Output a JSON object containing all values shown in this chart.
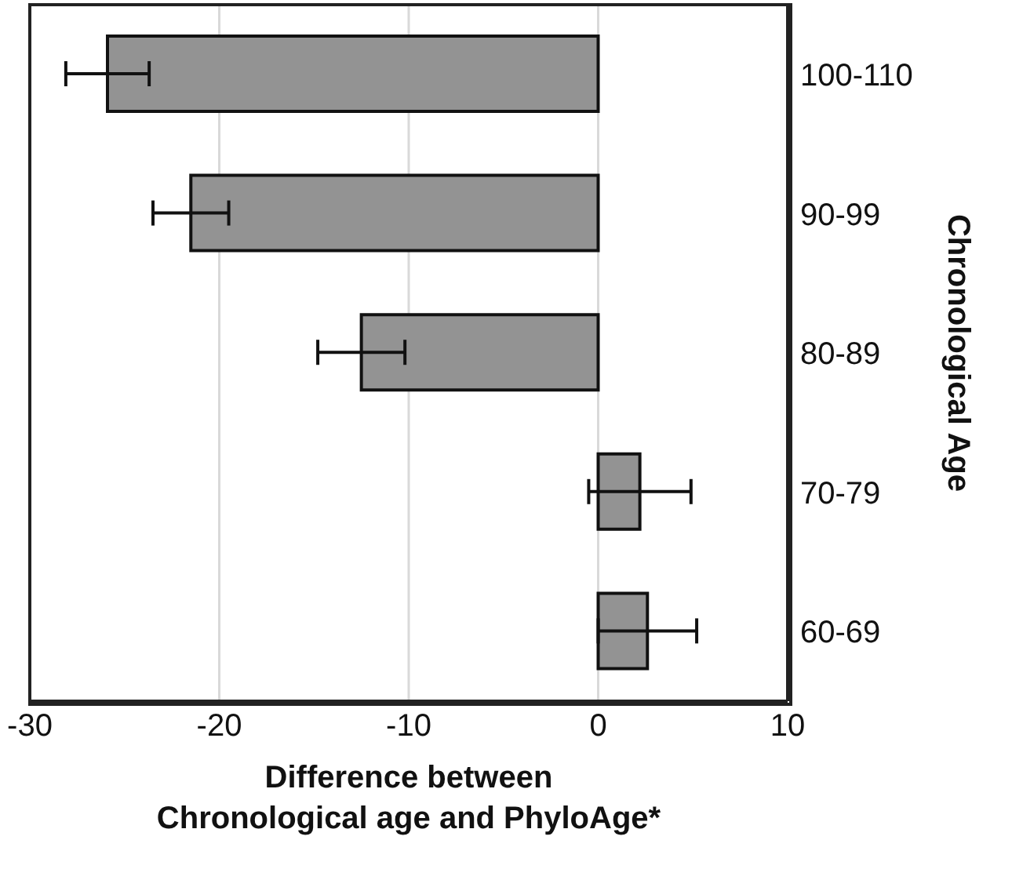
{
  "chart_data": {
    "type": "bar",
    "orientation": "horizontal",
    "xlabel": "Difference between\nChronological age and PhyloAge*",
    "ylabel": "Chronological Age",
    "categories": [
      "100-110",
      "90-99",
      "80-89",
      "70-79",
      "60-69"
    ],
    "values": [
      -25.9,
      -21.5,
      -12.5,
      2.2,
      2.6
    ],
    "errors": [
      2.2,
      2.0,
      2.3,
      2.7,
      2.6
    ],
    "color": "#939393",
    "xlim": [
      -30,
      10
    ],
    "xticks": [
      -30,
      -20,
      -10,
      0,
      10
    ],
    "grid": "x",
    "legend": false
  }
}
